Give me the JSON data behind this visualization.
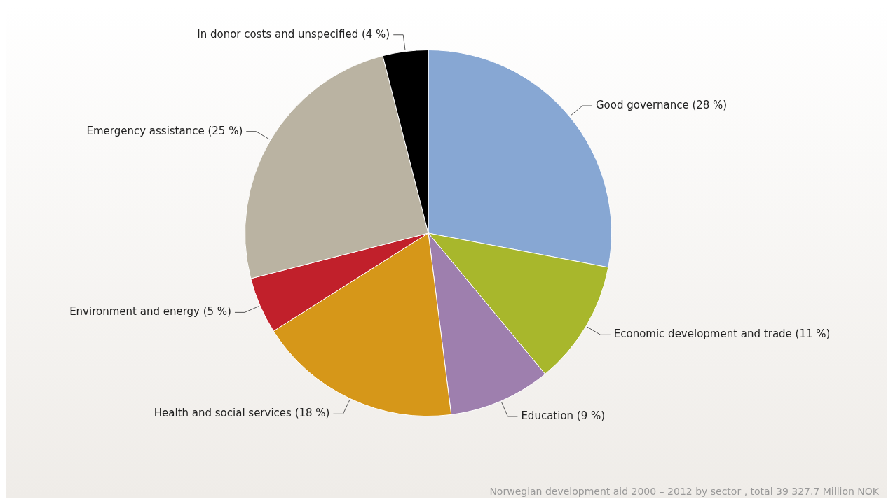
{
  "chart_data": {
    "type": "pie",
    "categories": [
      "Good governance (28 %)",
      "Economic development and trade (11 %)",
      "Education (9 %)",
      "Health and social services (18 %)",
      "Environment and energy (5 %)",
      "Emergency assistance (25 %)",
      "In donor costs and unspecified (4 %)"
    ],
    "values": [
      28,
      11,
      9,
      18,
      5,
      25,
      4
    ],
    "colors": [
      "#87a7d3",
      "#a8b72c",
      "#9e7fae",
      "#d69719",
      "#c1202b",
      "#bab3a2",
      "#000000"
    ],
    "annotations": [
      "Norwegian development aid 2000 – 2012 by sector , total 39 327.7 Million NOK"
    ]
  }
}
